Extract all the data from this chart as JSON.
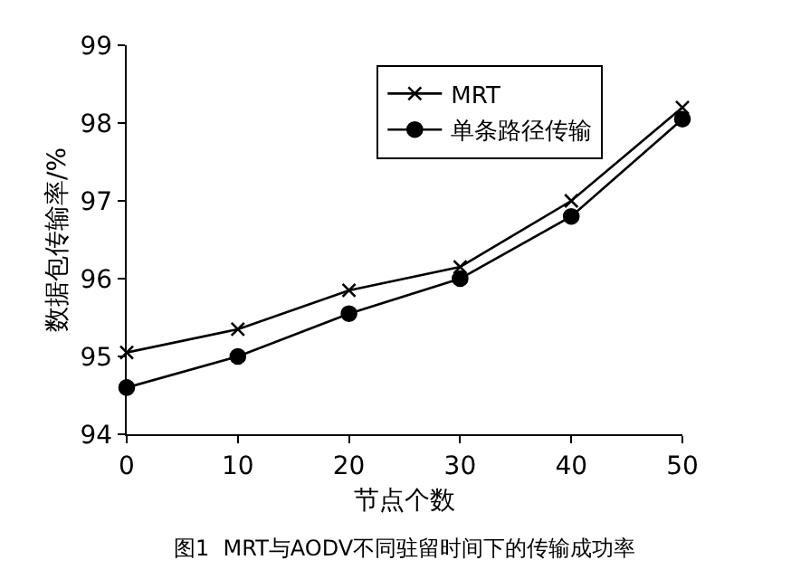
{
  "chart_data": {
    "type": "line",
    "xlabel": "节点个数",
    "ylabel": "数据包传输率/%",
    "x": [
      0,
      10,
      20,
      30,
      40,
      50
    ],
    "series": [
      {
        "name": "MRT",
        "color": "#000000",
        "marker": "cross",
        "values": [
          95.05,
          95.35,
          95.85,
          96.15,
          97.0,
          98.2
        ]
      },
      {
        "name": "单条路径传输",
        "color": "#000000",
        "marker": "circle",
        "values": [
          94.6,
          95.0,
          95.55,
          96.0,
          96.8,
          98.05
        ]
      }
    ],
    "xlim": [
      0,
      50
    ],
    "xticks": [
      0,
      10,
      20,
      30,
      40,
      50
    ],
    "ylim": [
      94,
      99
    ],
    "yticks": [
      94,
      95,
      96,
      97,
      98,
      99
    ],
    "legend": "top right",
    "line_style": "solid",
    "annotations": [
      "图1  MRT与AODV不同驻留时间下的传输成功率"
    ]
  }
}
